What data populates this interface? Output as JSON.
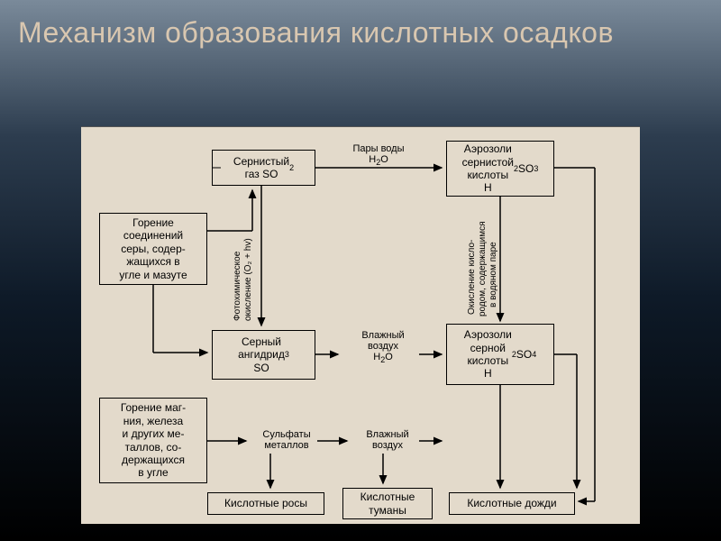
{
  "title": "Механизм образования кислотных осадков",
  "nodes": {
    "so2": {
      "text": "Сернистый\nгаз SO₂"
    },
    "h2so3": {
      "text": "Аэрозоли\nсернистой\nкислоты\nH₂SO₃"
    },
    "burning_s": {
      "text": "Горение\nсоединений\nсеры, содер-\nжащихся в\nугле и мазуте"
    },
    "so3": {
      "text": "Серный\nангидрид\nSO₃"
    },
    "h2so4": {
      "text": "Аэрозоли\nсерной\nкислоты\nH₂SO₄"
    },
    "burning_mg": {
      "text": "Горение маг-\nния, железа\nи других ме-\nталлов, со-\nдержащихся\nв угле"
    },
    "dew": {
      "text": "Кислотные росы"
    },
    "fog": {
      "text": "Кислотные\nтуманы"
    },
    "rain": {
      "text": "Кислотные дожди"
    }
  },
  "labels": {
    "vapor": "Пары воды\nH₂O",
    "moist1": "Влажный\nвоздух\nH₂O",
    "sulfates": "Сульфаты\nметаллов",
    "moist2": "Влажный\nвоздух",
    "photo": "Фотохимическое\nокисление (O₂ + hv)",
    "oxid": "Окисление кисло-\nродом, содержащимся\nв водяном паре"
  },
  "colors": {
    "bg": "#e3dacb",
    "line": "#000000"
  }
}
